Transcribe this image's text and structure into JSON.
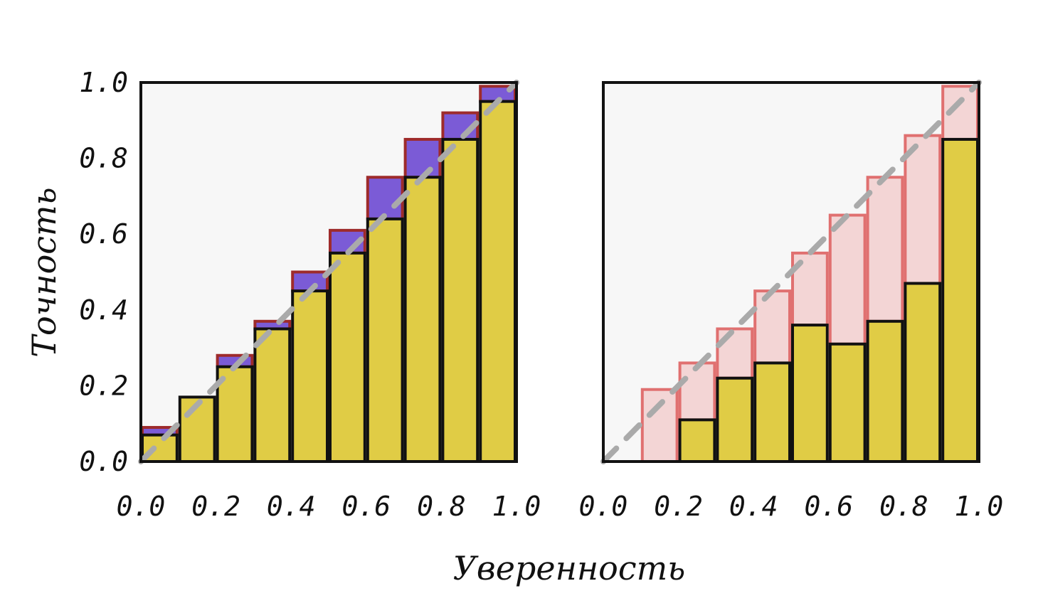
{
  "xlabel": "Уверенность",
  "ylabel": "Точность",
  "chart_data": [
    {
      "type": "bar",
      "panel": "left",
      "bin_edges": [
        0.0,
        0.1,
        0.2,
        0.3,
        0.4,
        0.5,
        0.6,
        0.7,
        0.8,
        0.9,
        1.0
      ],
      "accuracy": [
        0.07,
        0.17,
        0.25,
        0.35,
        0.45,
        0.55,
        0.64,
        0.75,
        0.85,
        0.95
      ],
      "gap_top": [
        0.09,
        0.17,
        0.28,
        0.37,
        0.5,
        0.61,
        0.75,
        0.85,
        0.92,
        0.99
      ],
      "xlim": [
        0,
        1
      ],
      "ylim": [
        0,
        1
      ],
      "xticks": [
        "0.0",
        "0.2",
        "0.4",
        "0.6",
        "0.8",
        "1.0"
      ],
      "yticks": [
        "0.0",
        "0.2",
        "0.4",
        "0.6",
        "0.8",
        "1.0"
      ],
      "diagonal": "dashed",
      "colors": {
        "accuracy": "#e0cc45",
        "gap": "#7b5bd6",
        "gap_edge": "#9e2b2b",
        "diagonal": "#aaaaaa",
        "background": "#f7f7f7"
      }
    },
    {
      "type": "bar",
      "panel": "right",
      "bin_edges": [
        0.0,
        0.1,
        0.2,
        0.3,
        0.4,
        0.5,
        0.6,
        0.7,
        0.8,
        0.9,
        1.0
      ],
      "accuracy": [
        0.0,
        0.0,
        0.11,
        0.22,
        0.26,
        0.36,
        0.31,
        0.37,
        0.47,
        0.85
      ],
      "gap_top": [
        0.0,
        0.19,
        0.26,
        0.35,
        0.45,
        0.55,
        0.65,
        0.75,
        0.86,
        0.99
      ],
      "xlim": [
        0,
        1
      ],
      "ylim": [
        0,
        1
      ],
      "xticks": [
        "0.0",
        "0.2",
        "0.4",
        "0.6",
        "0.8",
        "1.0"
      ],
      "diagonal": "dashed",
      "colors": {
        "accuracy": "#e0cc45",
        "gap": "#f3d5d5",
        "gap_edge": "#e07070",
        "diagonal": "#aaaaaa",
        "background": "#f7f7f7"
      }
    }
  ]
}
